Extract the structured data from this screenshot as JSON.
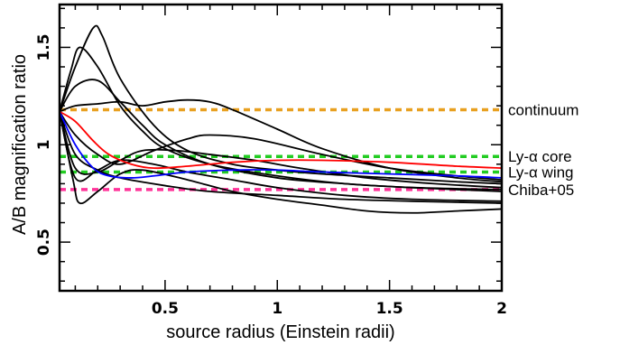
{
  "chart_data": {
    "type": "line",
    "title": "",
    "xlabel": "source radius (Einstein radii)",
    "ylabel": "A/B magnification ratio",
    "xlim": [
      0.03,
      2.0
    ],
    "ylim": [
      0.25,
      1.72
    ],
    "xticks_major": [
      0.5,
      1,
      1.5,
      2
    ],
    "xtick_labels": [
      "0.5",
      "1",
      "1.5",
      "2"
    ],
    "xticks_minor": [
      0.1,
      0.2,
      0.3,
      0.4,
      0.6,
      0.7,
      0.8,
      0.9,
      1.1,
      1.2,
      1.3,
      1.4,
      1.6,
      1.7,
      1.8,
      1.9
    ],
    "yticks_major": [
      0.5,
      1,
      1.5
    ],
    "ytick_labels": [
      "0.5",
      "1",
      "1.5"
    ],
    "yticks_minor": [
      0.3,
      0.4,
      0.6,
      0.7,
      0.8,
      0.9,
      1.1,
      1.2,
      1.3,
      1.4,
      1.6,
      1.7
    ],
    "grid": false,
    "reference_lines": [
      {
        "label": "continuum",
        "y": 1.18,
        "color": "#E8A020",
        "style": "dashed"
      },
      {
        "label": "Ly-α core",
        "y": 0.94,
        "color": "#22CC22",
        "style": "dashed"
      },
      {
        "label": "Ly-α wing",
        "y": 0.86,
        "color": "#22CC22",
        "style": "dashed"
      },
      {
        "label": "Chiba+05",
        "y": 0.77,
        "color": "#FF3399",
        "style": "dashed"
      }
    ],
    "series": [
      {
        "color": "#000000",
        "x": [
          0.03,
          0.1,
          0.18,
          0.22,
          0.3,
          0.45,
          0.6,
          0.8,
          1.0,
          1.2,
          1.5,
          1.8,
          2.0
        ],
        "y": [
          1.17,
          1.4,
          1.6,
          1.56,
          1.34,
          1.1,
          0.97,
          0.9,
          0.87,
          0.85,
          0.83,
          0.81,
          0.8
        ]
      },
      {
        "color": "#000000",
        "x": [
          0.03,
          0.08,
          0.12,
          0.2,
          0.3,
          0.4,
          0.5,
          0.7,
          1.0,
          1.3,
          1.6,
          2.0
        ],
        "y": [
          1.17,
          1.38,
          1.5,
          1.4,
          1.2,
          1.07,
          0.98,
          0.9,
          0.84,
          0.8,
          0.78,
          0.76
        ]
      },
      {
        "color": "#000000",
        "x": [
          0.03,
          0.1,
          0.2,
          0.3,
          0.4,
          0.5,
          0.7,
          1.0,
          1.3,
          1.6,
          2.0
        ],
        "y": [
          1.17,
          1.3,
          1.33,
          1.22,
          1.1,
          1.0,
          0.9,
          0.83,
          0.8,
          0.78,
          0.77
        ]
      },
      {
        "color": "#000000",
        "x": [
          0.03,
          0.1,
          0.2,
          0.3,
          0.4,
          0.5,
          0.6,
          0.7,
          0.8,
          1.0,
          1.2,
          1.5,
          1.8,
          2.0
        ],
        "y": [
          1.17,
          1.2,
          1.21,
          1.22,
          1.2,
          1.22,
          1.23,
          1.22,
          1.18,
          1.08,
          0.98,
          0.88,
          0.83,
          0.81
        ]
      },
      {
        "color": "#000000",
        "x": [
          0.03,
          0.1,
          0.2,
          0.3,
          0.45,
          0.6,
          0.7,
          0.9,
          1.2,
          1.5,
          1.8,
          2.0
        ],
        "y": [
          1.17,
          1.05,
          0.95,
          0.9,
          0.97,
          1.03,
          1.05,
          1.03,
          0.95,
          0.88,
          0.84,
          0.82
        ]
      },
      {
        "color": "#000000",
        "x": [
          0.03,
          0.1,
          0.2,
          0.3,
          0.4,
          0.55,
          0.7,
          0.9,
          1.1,
          1.4,
          1.7,
          2.0
        ],
        "y": [
          1.17,
          0.88,
          0.86,
          0.92,
          0.97,
          0.97,
          0.95,
          0.92,
          0.88,
          0.83,
          0.8,
          0.78
        ]
      },
      {
        "color": "#000000",
        "x": [
          0.03,
          0.1,
          0.2,
          0.3,
          0.45,
          0.6,
          0.8,
          1.0,
          1.3,
          1.6,
          2.0
        ],
        "y": [
          1.17,
          0.83,
          0.87,
          0.92,
          0.9,
          0.86,
          0.82,
          0.78,
          0.74,
          0.72,
          0.71
        ]
      },
      {
        "color": "#000000",
        "x": [
          0.03,
          0.09,
          0.12,
          0.2,
          0.3,
          0.4,
          0.6,
          0.8,
          1.0,
          1.2,
          1.4,
          1.6,
          1.8,
          2.0
        ],
        "y": [
          1.17,
          0.82,
          0.7,
          0.76,
          0.85,
          0.87,
          0.82,
          0.76,
          0.72,
          0.69,
          0.66,
          0.65,
          0.66,
          0.67
        ]
      },
      {
        "color": "#000000",
        "x": [
          0.03,
          0.1,
          0.2,
          0.3,
          0.5,
          0.7,
          1.0,
          1.3,
          1.6,
          2.0
        ],
        "y": [
          1.17,
          0.95,
          0.87,
          0.83,
          0.79,
          0.76,
          0.74,
          0.72,
          0.71,
          0.7
        ]
      },
      {
        "color": "#FF0000",
        "x": [
          0.03,
          0.1,
          0.18,
          0.25,
          0.35,
          0.45,
          0.6,
          0.8,
          1.0,
          1.2,
          1.5,
          1.8,
          2.0
        ],
        "y": [
          1.17,
          1.12,
          1.02,
          0.95,
          0.9,
          0.88,
          0.89,
          0.91,
          0.92,
          0.92,
          0.91,
          0.89,
          0.88
        ]
      },
      {
        "color": "#0000FF",
        "x": [
          0.03,
          0.1,
          0.18,
          0.25,
          0.35,
          0.45,
          0.6,
          0.8,
          1.0,
          1.2,
          1.5,
          1.8,
          2.0
        ],
        "y": [
          1.17,
          1.0,
          0.88,
          0.84,
          0.83,
          0.84,
          0.86,
          0.87,
          0.87,
          0.86,
          0.85,
          0.84,
          0.83
        ]
      }
    ]
  }
}
